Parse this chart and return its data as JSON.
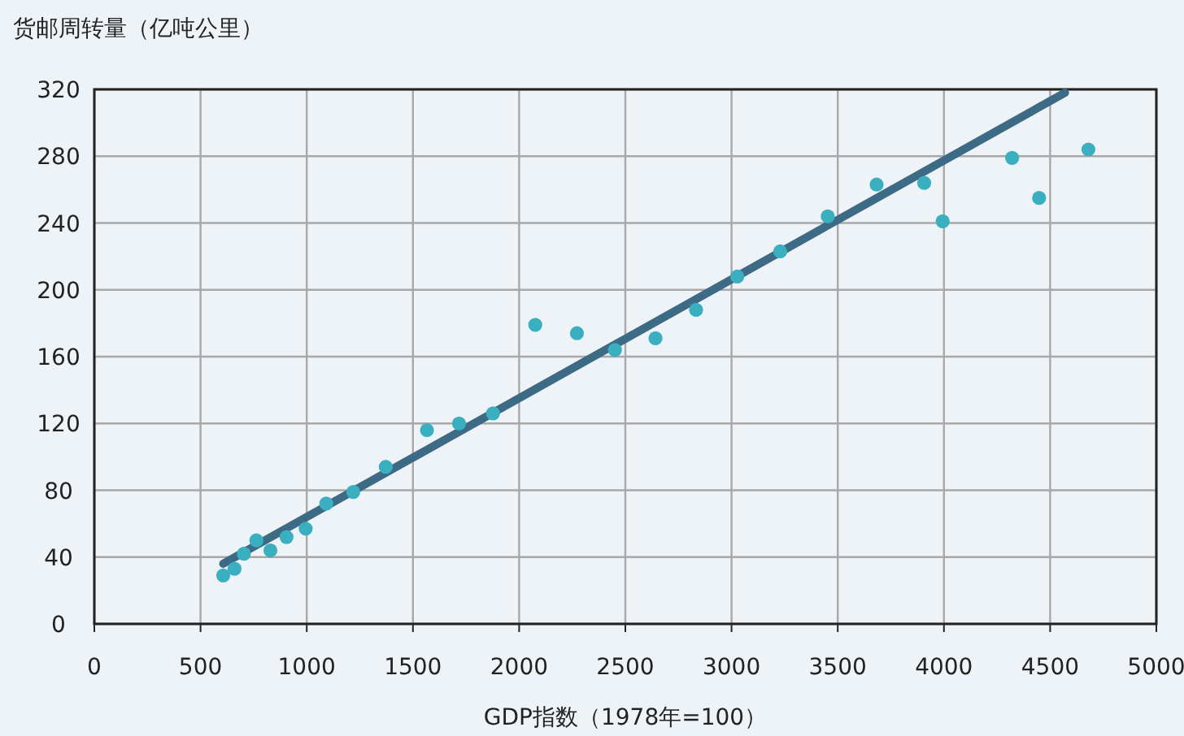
{
  "chart_data": {
    "type": "scatter",
    "ylabel": "货邮周转量（亿吨公里）",
    "xlabel": "GDP指数（1978年=100）",
    "xlim": [
      0,
      5000
    ],
    "ylim": [
      0,
      320
    ],
    "xticks": [
      0,
      500,
      1000,
      1500,
      2000,
      2500,
      3000,
      3500,
      4000,
      4500,
      5000
    ],
    "yticks": [
      0,
      40,
      80,
      120,
      160,
      200,
      240,
      280,
      320
    ],
    "grid": true,
    "series": [
      {
        "color": "#3aafbf",
        "marker": "circle",
        "x": [
          607,
          660,
          704,
          763,
          829,
          905,
          995,
          1092,
          1219,
          1372,
          1566,
          1717,
          1877,
          2076,
          2272,
          2451,
          2642,
          2833,
          3027,
          3229,
          3453,
          3683,
          3907,
          3994,
          4321,
          4448,
          4680
        ],
        "values": [
          29,
          33,
          42,
          50,
          44,
          52,
          57,
          72,
          79,
          94,
          116,
          120,
          126,
          179,
          174,
          164,
          171,
          188,
          208,
          223,
          244,
          263,
          264,
          241,
          279,
          255,
          284
        ]
      },
      {
        "type": "line",
        "color": "#3d6a85",
        "x": [
          607,
          4570
        ],
        "values": [
          36,
          318
        ]
      }
    ]
  }
}
